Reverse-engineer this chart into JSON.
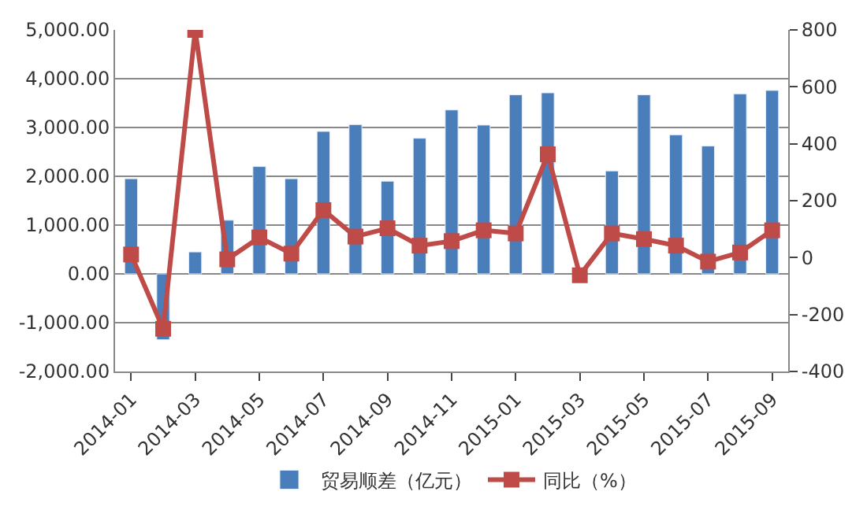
{
  "chart_data": {
    "type": "bar",
    "categories": [
      "2014-01",
      null,
      "2014-03",
      null,
      "2014-05",
      null,
      "2014-07",
      null,
      "2014-09",
      null,
      "2014-11",
      null,
      "2015-01",
      null,
      "2015-03",
      null,
      "2015-05",
      null,
      "2015-07",
      null,
      "2015-09"
    ],
    "series": [
      {
        "name": "贸易顺差（亿元）",
        "color": "#4a7ebb",
        "values": [
          1950,
          -1350,
          450,
          1100,
          2200,
          1950,
          2920,
          3060,
          1900,
          2780,
          3360,
          3050,
          3670,
          3710,
          30,
          2110,
          3670,
          2850,
          2620,
          3690,
          3760
        ]
      },
      {
        "name": "同比（%）",
        "type": "line",
        "axis": "y2",
        "color": "#be4b48",
        "values": [
          11,
          -250,
          800,
          -6,
          71,
          14,
          167,
          74,
          103,
          42,
          58,
          96,
          85,
          363,
          -62,
          85,
          65,
          42,
          -14,
          18,
          96
        ]
      }
    ],
    "ylim": [
      -2000,
      5000
    ],
    "yticks": [
      {
        "value": -2000,
        "label": "-2,000.00"
      },
      {
        "value": -1000,
        "label": "-1,000.00"
      },
      {
        "value": 0,
        "label": "0.00"
      },
      {
        "value": 1000,
        "label": "1,000.00"
      },
      {
        "value": 2000,
        "label": "2,000.00"
      },
      {
        "value": 3000,
        "label": "3,000.00"
      },
      {
        "value": 4000,
        "label": "4,000.00"
      },
      {
        "value": 5000,
        "label": "5,000.00"
      }
    ],
    "y2lim": [
      -400,
      800
    ],
    "y2ticks": [
      -400,
      -200,
      0,
      200,
      400,
      600,
      800
    ],
    "grid": "y",
    "legend": "bottom",
    "marker": "square"
  }
}
